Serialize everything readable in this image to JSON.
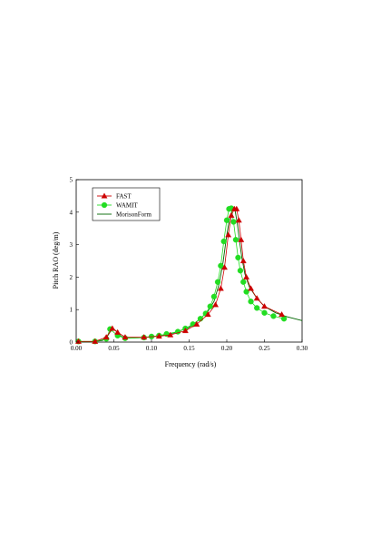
{
  "chart_data": {
    "type": "line",
    "title": "",
    "xlabel": "Frequency (rad/s)",
    "ylabel": "Pitch RAO (deg/m)",
    "xlim": [
      0.0,
      0.3
    ],
    "ylim": [
      0,
      5
    ],
    "xticks": [
      "0.00",
      "0.05",
      "0.10",
      "0.15",
      "0.20",
      "0.25",
      "0.30"
    ],
    "yticks": [
      "0",
      "1",
      "2",
      "3",
      "4",
      "5"
    ],
    "grid": false,
    "legend_position": "top-left",
    "series": [
      {
        "name": "FAST",
        "marker": "triangle",
        "color": "#cc0000",
        "x": [
          0.003,
          0.025,
          0.04,
          0.048,
          0.055,
          0.065,
          0.09,
          0.11,
          0.125,
          0.145,
          0.16,
          0.175,
          0.185,
          0.192,
          0.197,
          0.202,
          0.206,
          0.21,
          0.213,
          0.216,
          0.219,
          0.222,
          0.226,
          0.232,
          0.24,
          0.25,
          0.273
        ],
        "y": [
          0.02,
          0.02,
          0.15,
          0.42,
          0.3,
          0.15,
          0.15,
          0.18,
          0.22,
          0.35,
          0.55,
          0.85,
          1.15,
          1.65,
          2.3,
          3.3,
          3.9,
          4.1,
          4.1,
          3.75,
          3.15,
          2.5,
          2.0,
          1.65,
          1.35,
          1.1,
          0.85
        ]
      },
      {
        "name": "WAMIT",
        "marker": "circle",
        "color": "#22dd22",
        "x": [
          0.003,
          0.025,
          0.04,
          0.045,
          0.055,
          0.065,
          0.09,
          0.1,
          0.11,
          0.12,
          0.135,
          0.145,
          0.155,
          0.165,
          0.172,
          0.178,
          0.183,
          0.188,
          0.192,
          0.196,
          0.2,
          0.203,
          0.206,
          0.209,
          0.212,
          0.215,
          0.218,
          0.222,
          0.226,
          0.232,
          0.24,
          0.25,
          0.262,
          0.276
        ],
        "y": [
          0.02,
          0.02,
          0.1,
          0.4,
          0.2,
          0.12,
          0.14,
          0.17,
          0.2,
          0.25,
          0.32,
          0.42,
          0.55,
          0.72,
          0.88,
          1.1,
          1.4,
          1.85,
          2.35,
          3.1,
          3.75,
          4.1,
          4.12,
          3.7,
          3.15,
          2.6,
          2.2,
          1.85,
          1.55,
          1.25,
          1.05,
          0.9,
          0.8,
          0.72
        ]
      },
      {
        "name": "MorisonForm",
        "marker": "none",
        "color": "#006600",
        "x": [
          0.0,
          0.02,
          0.035,
          0.042,
          0.047,
          0.05,
          0.055,
          0.06,
          0.07,
          0.09,
          0.11,
          0.13,
          0.15,
          0.165,
          0.175,
          0.183,
          0.19,
          0.195,
          0.2,
          0.204,
          0.208,
          0.211,
          0.214,
          0.217,
          0.22,
          0.224,
          0.23,
          0.24,
          0.25,
          0.265,
          0.28,
          0.3
        ],
        "y": [
          0.01,
          0.01,
          0.05,
          0.2,
          0.38,
          0.4,
          0.3,
          0.17,
          0.12,
          0.14,
          0.19,
          0.28,
          0.45,
          0.72,
          0.95,
          1.25,
          1.8,
          2.45,
          3.3,
          3.85,
          4.1,
          4.05,
          3.65,
          3.1,
          2.6,
          2.1,
          1.7,
          1.35,
          1.1,
          0.9,
          0.78,
          0.66
        ]
      }
    ]
  }
}
